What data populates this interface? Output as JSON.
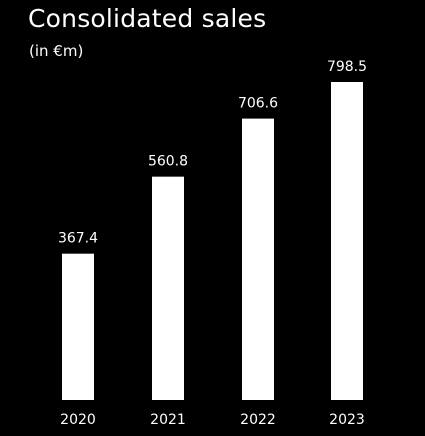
{
  "title": "Consolidated sales",
  "subtitle": "(in €m)",
  "colors": {
    "background": "#000000",
    "bar": "#ffffff",
    "text": "#ffffff"
  },
  "chart_data": {
    "type": "bar",
    "title": "Consolidated sales",
    "subtitle": "(in €m)",
    "categories": [
      "2020",
      "2021",
      "2022",
      "2023"
    ],
    "values": [
      367.4,
      560.8,
      706.6,
      798.5
    ],
    "value_labels": [
      "367.4",
      "560.8",
      "706.6",
      "798.5"
    ],
    "xlabel": "",
    "ylabel": "",
    "ylim": [
      0,
      798.5
    ],
    "grid": false,
    "legend": "none"
  }
}
